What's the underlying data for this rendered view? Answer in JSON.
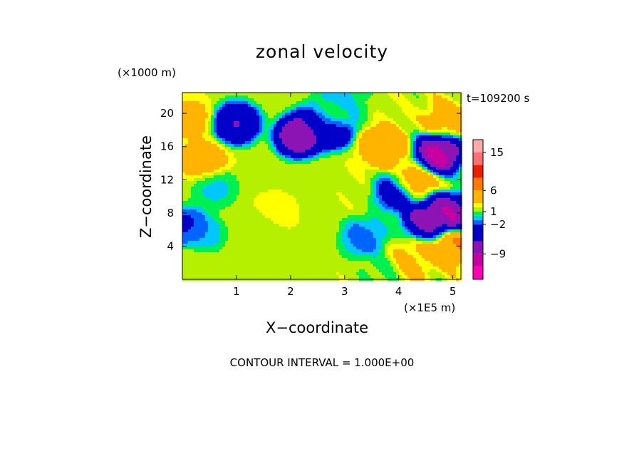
{
  "chart_data": {
    "type": "heatmap",
    "title": "zonal velocity",
    "xlabel": "X−coordinate",
    "ylabel": "Z−coordinate",
    "x_unit_label": "(×1E5 m)",
    "y_unit_label": "(×1000 m)",
    "time_label": "t=109200 s",
    "contour_label": "CONTOUR INTERVAL = 1.000E+00",
    "xlim": [
      0,
      5.15
    ],
    "ylim": [
      0,
      22.5
    ],
    "xticks": [
      1,
      2,
      3,
      4,
      5
    ],
    "yticks": [
      4,
      8,
      12,
      16,
      20
    ],
    "colorbar": {
      "levels": [
        -15,
        -12,
        -9,
        -6,
        -2,
        -1,
        0,
        1,
        2,
        3,
        6,
        9,
        12,
        15,
        18
      ],
      "tick_values": [
        15,
        6,
        1,
        -2,
        -9
      ],
      "tick_labels": [
        "15",
        "6",
        "1",
        "−2",
        "−9"
      ],
      "colors_bottom_to_top": [
        "#ff00b4",
        "#c800a0",
        "#8c14b4",
        "#0000c8",
        "#0064ff",
        "#00c8ff",
        "#00f050",
        "#b4f000",
        "#ffff00",
        "#ffb400",
        "#ff7800",
        "#f01e00",
        "#ff6e6e",
        "#ffaaaa"
      ]
    },
    "field_features": [
      {
        "x": 2.7,
        "z": 19.0,
        "value": 8
      },
      {
        "x": 2.85,
        "z": 21.5,
        "value": -1
      },
      {
        "x": 3.05,
        "z": 21.0,
        "value": 0
      },
      {
        "x": 1.0,
        "z": 18.8,
        "value": -7
      },
      {
        "x": 2.15,
        "z": 17.3,
        "value": -10
      },
      {
        "x": 2.5,
        "z": 18.6,
        "value": -8
      },
      {
        "x": 2.75,
        "z": 18.3,
        "value": -9
      },
      {
        "x": 0.15,
        "z": 19.3,
        "value": 4
      },
      {
        "x": 0.4,
        "z": 14.3,
        "value": 5
      },
      {
        "x": 4.75,
        "z": 15.2,
        "value": -11
      },
      {
        "x": 4.9,
        "z": 7.8,
        "value": -10
      },
      {
        "x": 4.5,
        "z": 7.5,
        "value": -8
      },
      {
        "x": 5.05,
        "z": 4.0,
        "value": 6
      },
      {
        "x": 4.9,
        "z": 19.2,
        "value": 5
      },
      {
        "x": 1.7,
        "z": 8.0,
        "value": 2.5
      },
      {
        "x": 1.5,
        "z": 6.5,
        "value": 1.5
      },
      {
        "x": 0.1,
        "z": 6.3,
        "value": -3
      },
      {
        "x": 0.35,
        "z": 5.3,
        "value": -1
      },
      {
        "x": 0.25,
        "z": 2.0,
        "value": 2
      },
      {
        "x": 3.35,
        "z": 5.0,
        "value": -2
      },
      {
        "x": 4.2,
        "z": 2.0,
        "value": 4
      },
      {
        "x": 4.0,
        "z": 10.5,
        "value": -5
      },
      {
        "x": 3.7,
        "z": 16.0,
        "value": 6
      },
      {
        "x": 4.25,
        "z": 11.5,
        "value": 6
      },
      {
        "x": 0.6,
        "z": 11.0,
        "value": -0.5
      },
      {
        "x": 3.7,
        "z": 1.0,
        "value": 0.5
      }
    ],
    "background_value": 1.8
  }
}
